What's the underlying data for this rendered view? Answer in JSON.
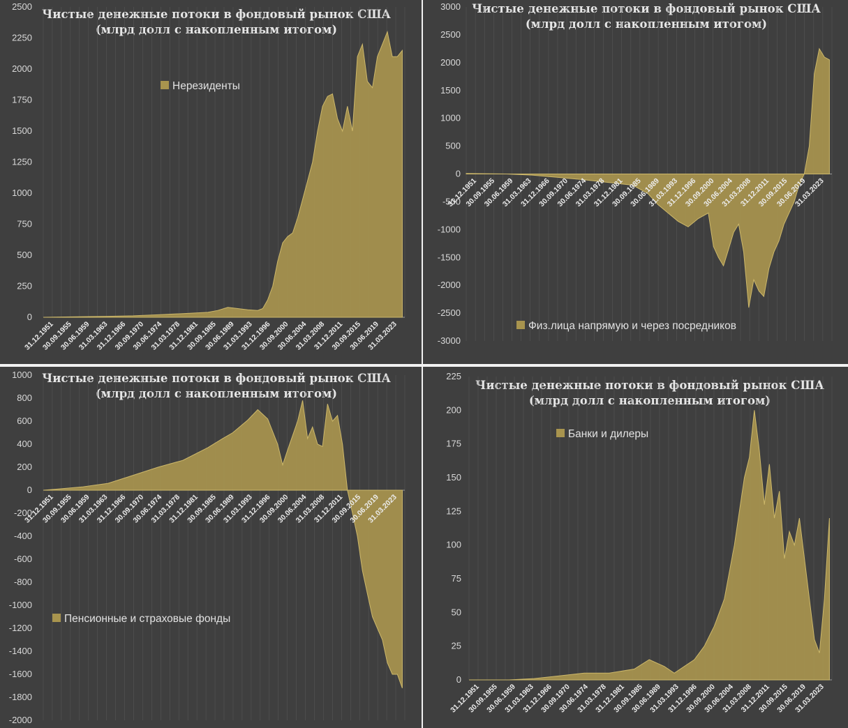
{
  "colors": {
    "panel_bg": "#3f3f3f",
    "area_fill": "#a8944e",
    "area_line": "#cdb86a",
    "gridline": "#555555",
    "text": "#d9d9d9"
  },
  "title_line1": "Чистые денежные потоки в фондовый рынок США",
  "title_line2": "(млрд долл с накопленным итогом)",
  "x_tick_labels": [
    "31.12.1951",
    "30.09.1955",
    "30.06.1959",
    "31.03.1963",
    "31.12.1966",
    "30.09.1970",
    "30.06.1974",
    "31.03.1978",
    "31.12.1981",
    "30.09.1985",
    "30.06.1989",
    "31.03.1993",
    "31.12.1996",
    "30.09.2000",
    "30.06.2004",
    "31.03.2008",
    "31.12.2011",
    "30.09.2015",
    "30.06.2019",
    "31.03.2023"
  ],
  "chart_data": [
    {
      "type": "area",
      "title": "Чистые денежные потоки в фондовый рынок США (млрд долл с накопленным итогом)",
      "xlabel": "",
      "ylabel": "",
      "ylim": [
        0,
        2500
      ],
      "yticks": [
        0,
        250,
        500,
        750,
        1000,
        1250,
        1500,
        1750,
        2000,
        2250,
        2500
      ],
      "legend": "top-center",
      "series": [
        {
          "name": "Нерезиденты",
          "x": [
            1951.99,
            1955,
            1960,
            1965,
            1970,
            1975,
            1980,
            1985,
            1987,
            1989,
            1991,
            1993,
            1995,
            1996,
            1997,
            1998,
            1999,
            2000,
            2001,
            2002,
            2003,
            2004,
            2005,
            2006,
            2007,
            2008,
            2009,
            2010,
            2011,
            2012,
            2013,
            2014,
            2015,
            2016,
            2017,
            2018,
            2019,
            2020,
            2021,
            2022,
            2023,
            2024
          ],
          "values": [
            0,
            2,
            5,
            8,
            12,
            20,
            30,
            40,
            55,
            80,
            70,
            60,
            55,
            70,
            140,
            250,
            450,
            600,
            650,
            680,
            800,
            950,
            1100,
            1250,
            1500,
            1700,
            1780,
            1800,
            1600,
            1500,
            1700,
            1500,
            2100,
            2200,
            1900,
            1850,
            2100,
            2200,
            2300,
            2100,
            2100,
            2150
          ]
        }
      ]
    },
    {
      "type": "area",
      "title": "Чистые денежные потоки в фондовый рынок США (млрд долл с накопленным итогом)",
      "xlabel": "",
      "ylabel": "",
      "ylim": [
        -3000,
        3000
      ],
      "yticks": [
        -3000,
        -2500,
        -2000,
        -1500,
        -1000,
        -500,
        0,
        500,
        1000,
        1500,
        2000,
        2500,
        3000
      ],
      "legend": "bottom-center",
      "series": [
        {
          "name": "Физ.лица напрямую и через посредников",
          "x": [
            1951.99,
            1960,
            1965,
            1970,
            1975,
            1980,
            1985,
            1988,
            1990,
            1992,
            1994,
            1996,
            1998,
            2000,
            2001,
            2002,
            2003,
            2004,
            2005,
            2006,
            2007,
            2008,
            2009,
            2010,
            2011,
            2012,
            2013,
            2014,
            2015,
            2016,
            2017,
            2018,
            2019,
            2020,
            2021,
            2022,
            2023,
            2024
          ],
          "values": [
            10,
            0,
            -20,
            -60,
            -100,
            -150,
            -200,
            -350,
            -550,
            -700,
            -850,
            -950,
            -800,
            -700,
            -1300,
            -1500,
            -1650,
            -1350,
            -1050,
            -900,
            -1400,
            -2400,
            -1900,
            -2100,
            -2200,
            -1700,
            -1400,
            -1200,
            -900,
            -700,
            -500,
            -200,
            0,
            500,
            1800,
            2250,
            2100,
            2050
          ]
        }
      ]
    },
    {
      "type": "area",
      "title": "Чистые денежные потоки в фондовый рынок США (млрд долл с накопленным итогом)",
      "xlabel": "",
      "ylabel": "",
      "ylim": [
        -2000,
        1000
      ],
      "yticks": [
        -2000,
        -1800,
        -1600,
        -1400,
        -1200,
        -1000,
        -800,
        -600,
        -400,
        -200,
        0,
        200,
        400,
        600,
        800,
        1000
      ],
      "legend": "bottom-left",
      "series": [
        {
          "name": "Пенсионные и страховые фонды",
          "x": [
            1951.99,
            1955,
            1960,
            1965,
            1970,
            1975,
            1980,
            1985,
            1988,
            1990,
            1993,
            1995,
            1997,
            1999,
            2000,
            2001,
            2003,
            2004,
            2005,
            2006,
            2007,
            2008,
            2009,
            2010,
            2011,
            2012,
            2013,
            2014,
            2015,
            2016,
            2017,
            2018,
            2019,
            2020,
            2021,
            2022,
            2023,
            2024
          ],
          "values": [
            0,
            10,
            30,
            60,
            130,
            200,
            260,
            370,
            450,
            500,
            610,
            700,
            620,
            400,
            220,
            350,
            600,
            780,
            450,
            550,
            400,
            380,
            750,
            600,
            650,
            400,
            0,
            -200,
            -400,
            -700,
            -900,
            -1100,
            -1200,
            -1300,
            -1500,
            -1600,
            -1600,
            -1720
          ]
        }
      ]
    },
    {
      "type": "area",
      "title": "Чистые денежные потоки в фондовый рынок США (млрд долл с накопленным итогом)",
      "xlabel": "",
      "ylabel": "",
      "ylim": [
        0,
        225
      ],
      "yticks": [
        0,
        25,
        50,
        75,
        100,
        125,
        150,
        175,
        200,
        225
      ],
      "legend": "top-center",
      "series": [
        {
          "name": "Банки и дилеры",
          "x": [
            1951.99,
            1960,
            1965,
            1970,
            1975,
            1980,
            1985,
            1988,
            1991,
            1993,
            1995,
            1997,
            1999,
            2001,
            2003,
            2005,
            2007,
            2008,
            2009,
            2010,
            2011,
            2012,
            2013,
            2014,
            2015,
            2016,
            2017,
            2018,
            2019,
            2020,
            2021,
            2022,
            2023,
            2024
          ],
          "values": [
            0,
            0,
            1,
            3,
            5,
            5,
            8,
            15,
            10,
            5,
            10,
            15,
            25,
            40,
            60,
            100,
            150,
            165,
            200,
            170,
            130,
            160,
            120,
            140,
            90,
            110,
            100,
            120,
            90,
            60,
            30,
            20,
            60,
            120
          ]
        }
      ]
    }
  ]
}
